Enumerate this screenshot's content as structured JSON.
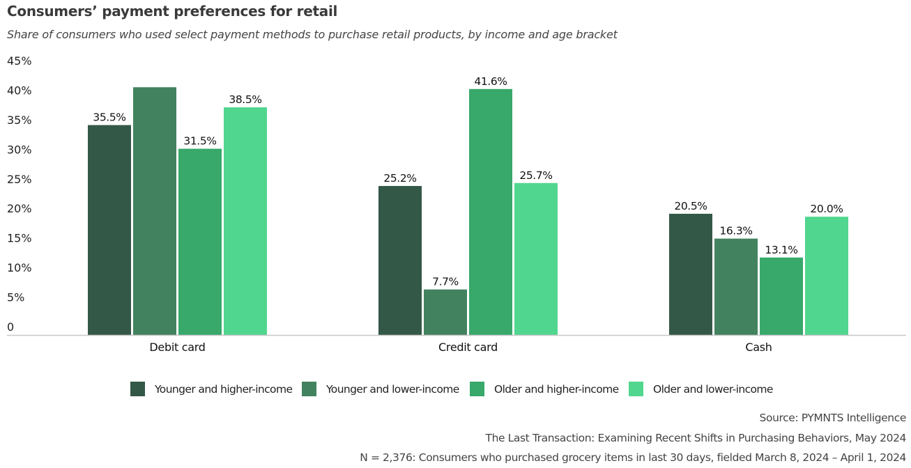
{
  "colors": {
    "series": [
      "#345847",
      "#42825E",
      "#38A86B",
      "#50D68E"
    ],
    "axis": "#c8c8c8"
  },
  "chart_data": {
    "type": "bar",
    "title": "Consumers’ payment preferences for retail",
    "subtitle": "Share of consumers who used select payment methods to purchase retail products, by income and age bracket",
    "xlabel": "",
    "ylabel": "",
    "ylim": [
      0,
      45
    ],
    "yticks": [
      0,
      5,
      10,
      15,
      20,
      25,
      30,
      35,
      40,
      45
    ],
    "ytick_labels": [
      "0",
      "5%",
      "10%",
      "15%",
      "20%",
      "25%",
      "30%",
      "35%",
      "40%",
      "45%"
    ],
    "grid": false,
    "legend_position": "bottom",
    "categories": [
      "Debit card",
      "Credit card",
      "Cash"
    ],
    "series": [
      {
        "name": "Younger and higher-income",
        "values": [
          35.5,
          25.2,
          20.5
        ],
        "labels": [
          "35.5%",
          "25.2%",
          "20.5%"
        ]
      },
      {
        "name": "Younger and lower-income",
        "values": [
          41.9,
          7.7,
          16.3
        ],
        "labels": [
          "",
          "7.7%",
          "16.3%"
        ],
        "estimated": [
          true,
          false,
          false
        ]
      },
      {
        "name": "Older and higher-income",
        "values": [
          31.5,
          41.6,
          13.1
        ],
        "labels": [
          "31.5%",
          "41.6%",
          "13.1%"
        ]
      },
      {
        "name": "Older and lower-income",
        "values": [
          38.5,
          25.7,
          20.0
        ],
        "labels": [
          "38.5%",
          "25.7%",
          "20.0%"
        ]
      }
    ]
  },
  "footer": {
    "source": "Source: PYMNTS Intelligence",
    "report": "The Last Transaction: Examining Recent Shifts in Purchasing Behaviors, May 2024",
    "sample": "N = 2,376: Consumers who purchased grocery items in last 30 days, fielded March 8, 2024 – April 1, 2024"
  }
}
